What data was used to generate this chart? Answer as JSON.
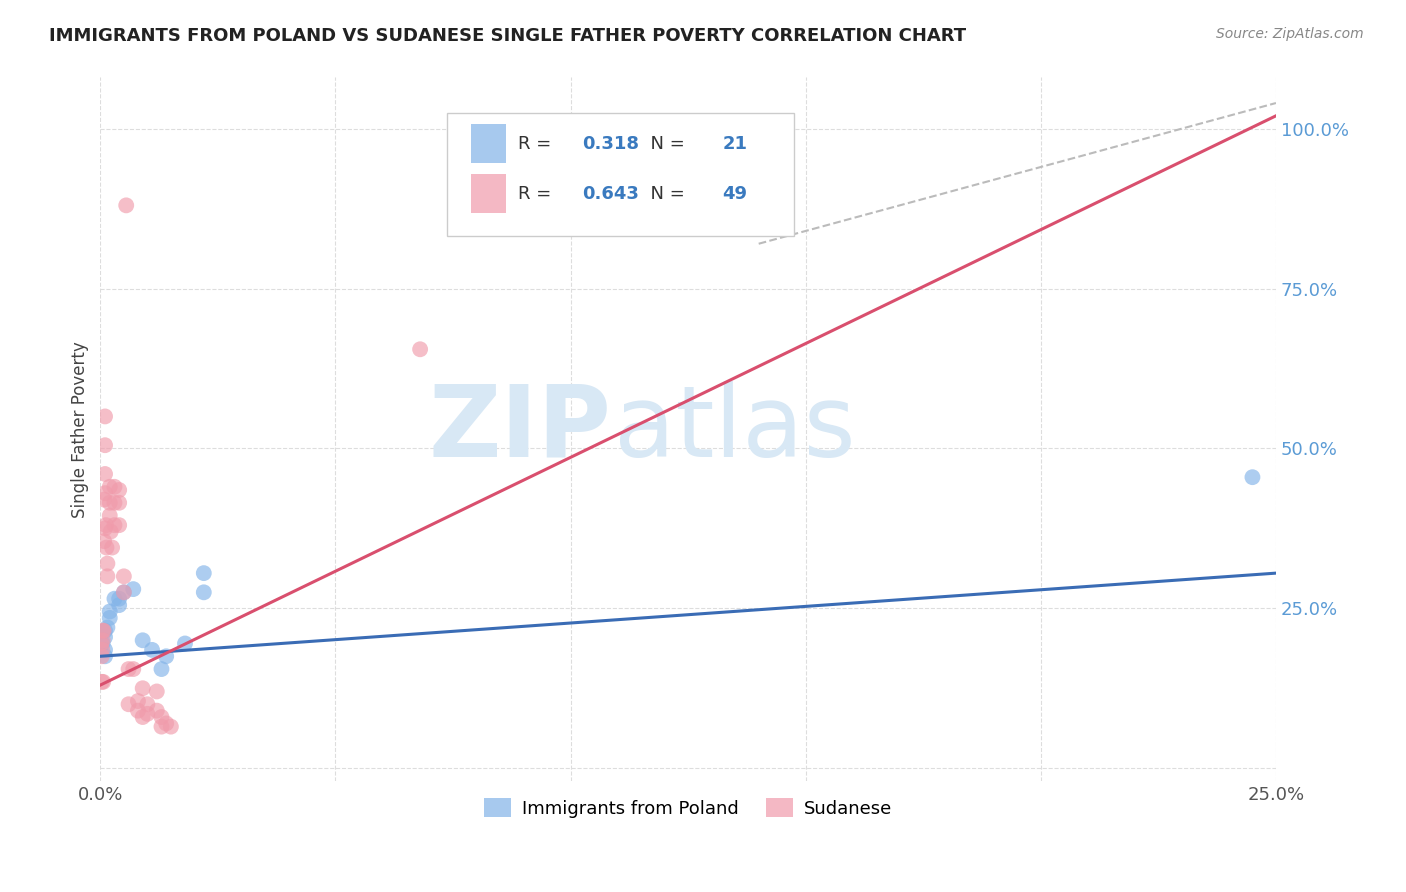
{
  "title": "IMMIGRANTS FROM POLAND VS SUDANESE SINGLE FATHER POVERTY CORRELATION CHART",
  "source": "Source: ZipAtlas.com",
  "ylabel": "Single Father Poverty",
  "xlim": [
    0.0,
    0.25
  ],
  "ylim": [
    -0.02,
    1.08
  ],
  "poland_color": "#82b3e8",
  "sudanese_color": "#f09bab",
  "poland_line_color": "#3a6cb5",
  "sudanese_line_color": "#d94f6e",
  "diagonal_line_color": "#bbbbbb",
  "watermark_zip": "ZIP",
  "watermark_atlas": "atlas",
  "watermark_color": "#d8e8f5",
  "background_color": "#ffffff",
  "grid_color": "#dddddd",
  "poland_R": 0.318,
  "poland_N": 21,
  "sudanese_R": 0.643,
  "sudanese_N": 49,
  "poland_scatter": [
    [
      0.0005,
      0.195
    ],
    [
      0.001,
      0.215
    ],
    [
      0.001,
      0.185
    ],
    [
      0.001,
      0.175
    ],
    [
      0.001,
      0.205
    ],
    [
      0.0015,
      0.22
    ],
    [
      0.002,
      0.245
    ],
    [
      0.002,
      0.235
    ],
    [
      0.003,
      0.265
    ],
    [
      0.004,
      0.265
    ],
    [
      0.004,
      0.255
    ],
    [
      0.005,
      0.275
    ],
    [
      0.007,
      0.28
    ],
    [
      0.009,
      0.2
    ],
    [
      0.011,
      0.185
    ],
    [
      0.013,
      0.155
    ],
    [
      0.014,
      0.175
    ],
    [
      0.018,
      0.195
    ],
    [
      0.022,
      0.275
    ],
    [
      0.022,
      0.305
    ],
    [
      0.245,
      0.455
    ]
  ],
  "sudanese_scatter": [
    [
      0.0002,
      0.195
    ],
    [
      0.0003,
      0.175
    ],
    [
      0.0004,
      0.185
    ],
    [
      0.0005,
      0.2
    ],
    [
      0.0005,
      0.215
    ],
    [
      0.0007,
      0.215
    ],
    [
      0.0008,
      0.355
    ],
    [
      0.0008,
      0.42
    ],
    [
      0.001,
      0.375
    ],
    [
      0.001,
      0.43
    ],
    [
      0.001,
      0.46
    ],
    [
      0.001,
      0.505
    ],
    [
      0.001,
      0.55
    ],
    [
      0.0012,
      0.38
    ],
    [
      0.0013,
      0.345
    ],
    [
      0.0015,
      0.32
    ],
    [
      0.0015,
      0.3
    ],
    [
      0.002,
      0.415
    ],
    [
      0.002,
      0.44
    ],
    [
      0.002,
      0.395
    ],
    [
      0.0022,
      0.37
    ],
    [
      0.0025,
      0.345
    ],
    [
      0.003,
      0.38
    ],
    [
      0.003,
      0.415
    ],
    [
      0.003,
      0.44
    ],
    [
      0.004,
      0.435
    ],
    [
      0.004,
      0.415
    ],
    [
      0.004,
      0.38
    ],
    [
      0.005,
      0.3
    ],
    [
      0.005,
      0.275
    ],
    [
      0.0055,
      0.88
    ],
    [
      0.006,
      0.155
    ],
    [
      0.006,
      0.1
    ],
    [
      0.007,
      0.155
    ],
    [
      0.008,
      0.105
    ],
    [
      0.008,
      0.09
    ],
    [
      0.009,
      0.125
    ],
    [
      0.009,
      0.08
    ],
    [
      0.01,
      0.1
    ],
    [
      0.01,
      0.085
    ],
    [
      0.012,
      0.12
    ],
    [
      0.012,
      0.09
    ],
    [
      0.013,
      0.08
    ],
    [
      0.013,
      0.065
    ],
    [
      0.014,
      0.07
    ],
    [
      0.015,
      0.065
    ],
    [
      0.068,
      0.655
    ],
    [
      0.0003,
      0.135
    ],
    [
      0.0006,
      0.135
    ]
  ],
  "poland_line": [
    [
      0.0,
      0.175
    ],
    [
      0.25,
      0.305
    ]
  ],
  "sudanese_line": [
    [
      0.0,
      0.13
    ],
    [
      0.25,
      1.02
    ]
  ],
  "diagonal_line": [
    [
      0.14,
      0.82
    ],
    [
      0.25,
      1.04
    ]
  ]
}
